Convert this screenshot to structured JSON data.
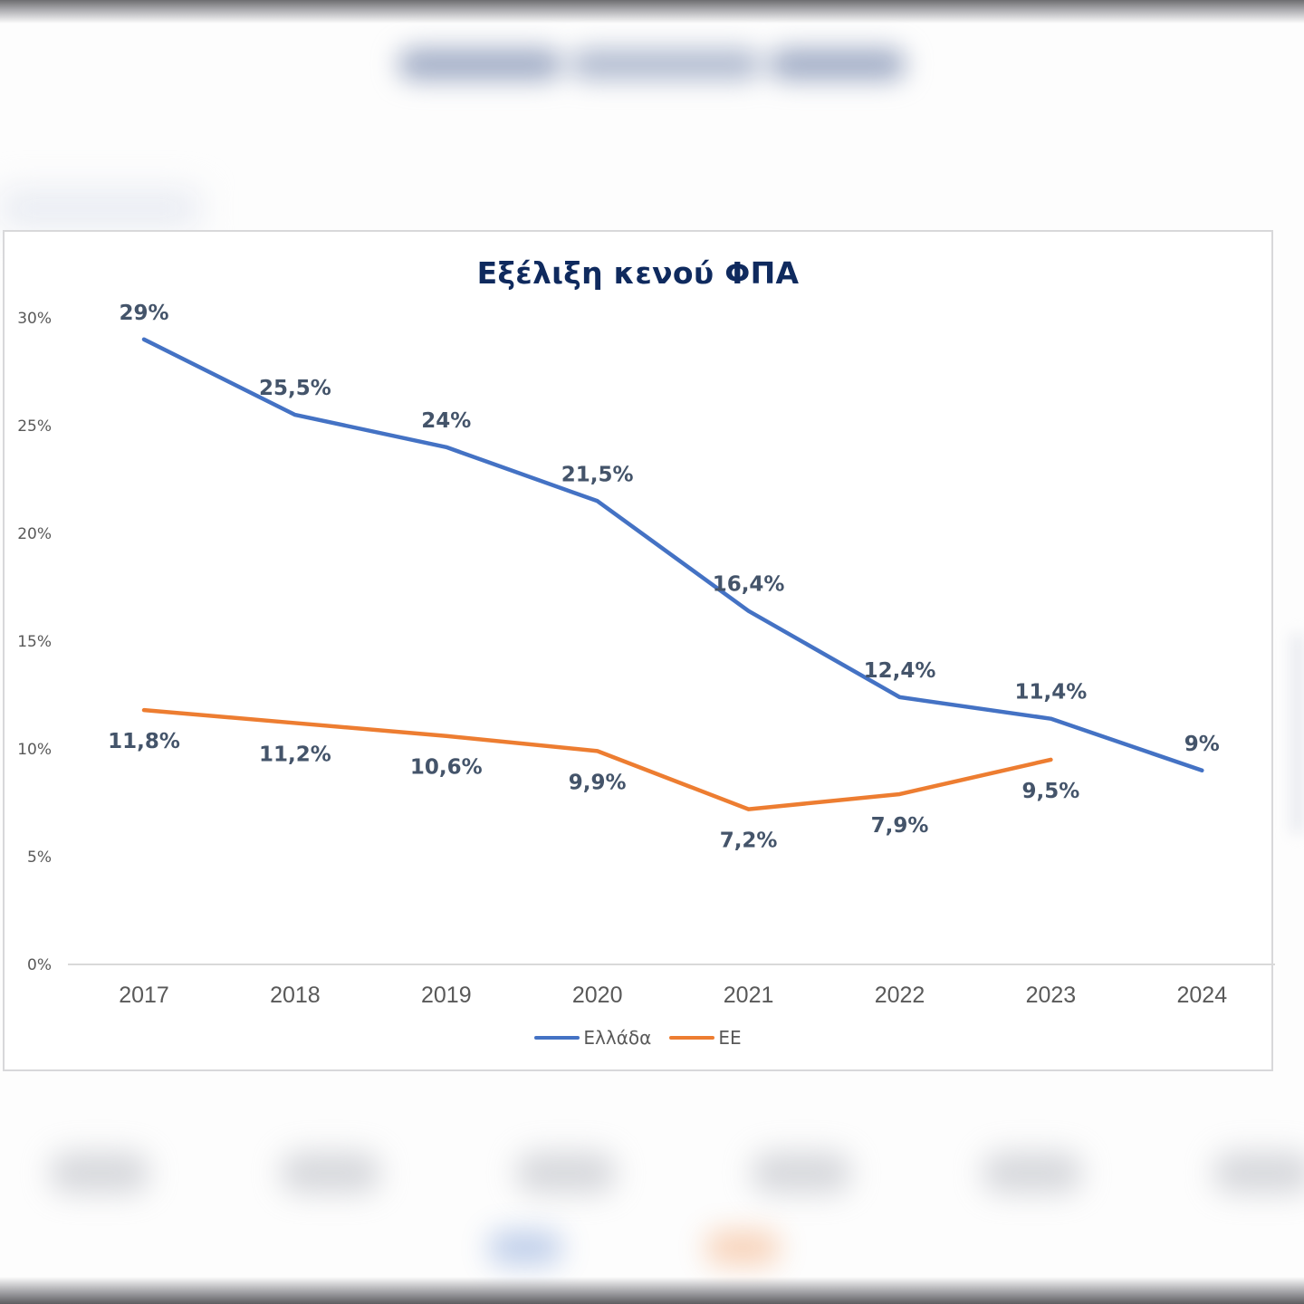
{
  "chart_data": {
    "type": "line",
    "title": "Εξέλιξη κενού ΦΠΑ",
    "xlabel": "",
    "ylabel": "",
    "categories": [
      "2017",
      "2018",
      "2019",
      "2020",
      "2021",
      "2022",
      "2023",
      "2024"
    ],
    "ylim": [
      0,
      30
    ],
    "yticks": [
      0,
      5,
      10,
      15,
      20,
      25,
      30
    ],
    "ytick_labels": [
      "0%",
      "5%",
      "10%",
      "15%",
      "20%",
      "25%",
      "30%"
    ],
    "grid": false,
    "legend_position": "bottom-center",
    "series": [
      {
        "name": "Ελλάδα",
        "color": "#4472c4",
        "values": [
          29,
          25.5,
          24,
          21.5,
          16.4,
          12.4,
          11.4,
          9
        ],
        "labels": [
          "29%",
          "25,5%",
          "24%",
          "21,5%",
          "16,4%",
          "12,4%",
          "11,4%",
          "9%"
        ],
        "label_position": "above"
      },
      {
        "name": "ΕΕ",
        "color": "#ed7d31",
        "values": [
          11.8,
          11.2,
          10.6,
          9.9,
          7.2,
          7.9,
          9.5,
          null
        ],
        "labels": [
          "11,8%",
          "11,2%",
          "10,6%",
          "9,9%",
          "7,2%",
          "7,9%",
          "9,5%",
          null
        ],
        "label_position": "below"
      }
    ]
  },
  "colors": {
    "title": "#0f2a5e",
    "data_label": "#44546a",
    "axis_text": "#595959",
    "axis_line": "#d9d9d9"
  }
}
